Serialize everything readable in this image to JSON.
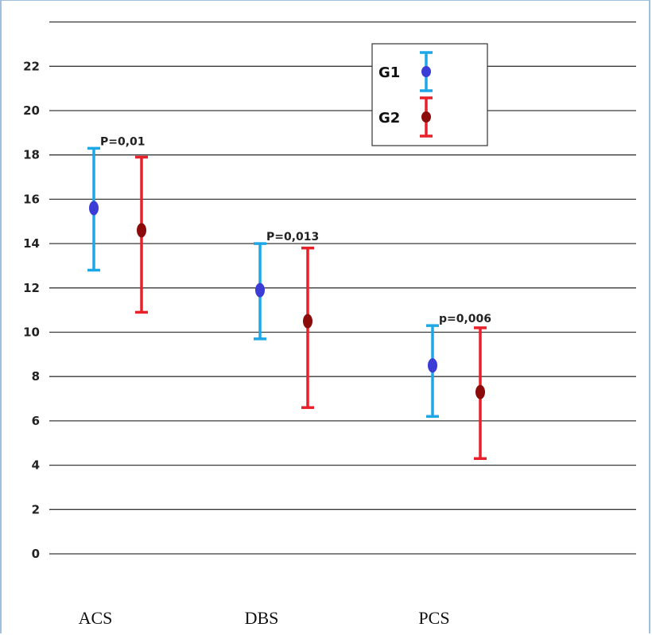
{
  "chart_data": {
    "type": "scatter",
    "title": "",
    "xlabel": "",
    "ylabel": "",
    "categories": [
      "ACS",
      "DBS",
      "PCS"
    ],
    "ylim": [
      0,
      24
    ],
    "yticks": [
      0,
      2,
      4,
      6,
      8,
      10,
      12,
      14,
      16,
      18,
      20,
      22
    ],
    "grid": true,
    "legend_position": "top-right",
    "series": [
      {
        "name": "G1",
        "bar_color": "#1ea7e6",
        "point_color": "#3b3bd6",
        "means": [
          15.6,
          11.9,
          8.5
        ],
        "lower": [
          12.8,
          9.7,
          6.2
        ],
        "upper": [
          18.3,
          14.0,
          10.3
        ]
      },
      {
        "name": "G2",
        "bar_color": "#e8202a",
        "point_color": "#8b0a0a",
        "means": [
          14.6,
          10.5,
          7.3
        ],
        "lower": [
          10.9,
          6.6,
          4.3
        ],
        "upper": [
          17.9,
          13.8,
          10.2
        ]
      }
    ],
    "annotations": [
      "P=0,01",
      "P=0,013",
      "p=0,006"
    ]
  }
}
